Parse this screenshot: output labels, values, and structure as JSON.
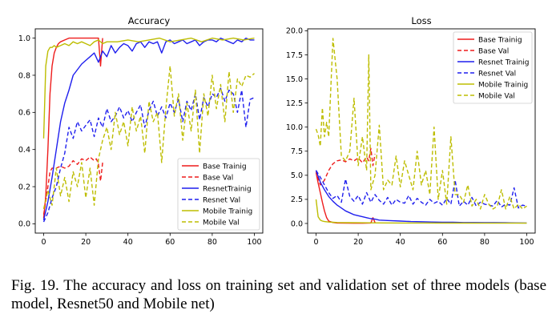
{
  "figure": {
    "caption": "Fig. 19.  The accuracy and loss on training set and validation set of three models (base model, Resnet50 and Mobile net)"
  },
  "colors": {
    "base": "#ee1c1c",
    "resnet": "#1f1fee",
    "mobile": "#bdbd00"
  },
  "chart_data": [
    {
      "type": "line",
      "title": "Accuracy",
      "xlabel": "",
      "ylabel": "",
      "xlim": [
        -4,
        104
      ],
      "ylim": [
        -0.05,
        1.05
      ],
      "xticks": [
        0,
        20,
        40,
        60,
        80,
        100
      ],
      "yticks": [
        0.0,
        0.2,
        0.4,
        0.6,
        0.8,
        1.0
      ],
      "ytick_labels": [
        "0.0",
        "0.2",
        "0.4",
        "0.6",
        "0.8",
        "1.0"
      ],
      "grid": false,
      "legend": "lower-right",
      "series": [
        {
          "name": "Base Trainig",
          "color": "#ee1c1c",
          "dash": false,
          "x": [
            0,
            1,
            2,
            3,
            4,
            5,
            6,
            7,
            8,
            10,
            12,
            14,
            16,
            18,
            20,
            22,
            24,
            25,
            26,
            27,
            28
          ],
          "y": [
            0.03,
            0.15,
            0.4,
            0.7,
            0.85,
            0.92,
            0.95,
            0.97,
            0.98,
            0.99,
            1.0,
            1.0,
            1.0,
            1.0,
            1.0,
            1.0,
            1.0,
            1.0,
            1.0,
            0.85,
            1.0
          ]
        },
        {
          "name": "Base Val",
          "color": "#ee1c1c",
          "dash": true,
          "x": [
            0,
            1,
            2,
            3,
            4,
            6,
            8,
            10,
            12,
            14,
            16,
            18,
            20,
            22,
            24,
            25,
            26,
            27,
            28
          ],
          "y": [
            0.05,
            0.12,
            0.2,
            0.28,
            0.3,
            0.3,
            0.31,
            0.3,
            0.31,
            0.34,
            0.32,
            0.35,
            0.34,
            0.36,
            0.34,
            0.35,
            0.32,
            0.23,
            0.33
          ]
        },
        {
          "name": "ResnetTrainig",
          "color": "#1f1fee",
          "dash": false,
          "x": [
            0,
            2,
            4,
            6,
            8,
            10,
            12,
            14,
            16,
            18,
            20,
            22,
            24,
            26,
            28,
            30,
            32,
            34,
            36,
            38,
            40,
            42,
            44,
            46,
            48,
            50,
            52,
            54,
            56,
            58,
            60,
            62,
            64,
            66,
            68,
            70,
            72,
            74,
            76,
            78,
            80,
            82,
            84,
            86,
            88,
            90,
            92,
            94,
            96,
            98,
            100
          ],
          "y": [
            0.02,
            0.12,
            0.25,
            0.4,
            0.55,
            0.65,
            0.72,
            0.8,
            0.83,
            0.86,
            0.88,
            0.9,
            0.92,
            0.87,
            0.93,
            0.9,
            0.96,
            0.92,
            0.95,
            0.97,
            0.96,
            0.93,
            0.97,
            0.98,
            0.95,
            0.98,
            0.97,
            0.98,
            0.92,
            0.98,
            0.99,
            0.97,
            0.98,
            0.99,
            0.97,
            0.98,
            0.99,
            0.96,
            0.98,
            0.99,
            0.99,
            0.98,
            1.0,
            0.99,
            0.98,
            0.97,
            0.99,
            0.98,
            1.0,
            0.99,
            0.99
          ]
        },
        {
          "name": "Resnet Val",
          "color": "#1f1fee",
          "dash": true,
          "x": [
            0,
            2,
            4,
            6,
            8,
            10,
            12,
            14,
            16,
            18,
            20,
            22,
            24,
            26,
            28,
            30,
            32,
            34,
            36,
            38,
            40,
            42,
            44,
            46,
            48,
            50,
            52,
            54,
            56,
            58,
            60,
            62,
            64,
            66,
            68,
            70,
            72,
            74,
            76,
            78,
            80,
            82,
            84,
            86,
            88,
            90,
            92,
            94,
            96,
            98,
            100
          ],
          "y": [
            0.01,
            0.06,
            0.14,
            0.2,
            0.3,
            0.38,
            0.52,
            0.46,
            0.55,
            0.5,
            0.53,
            0.56,
            0.47,
            0.57,
            0.52,
            0.62,
            0.55,
            0.58,
            0.63,
            0.57,
            0.61,
            0.55,
            0.6,
            0.64,
            0.52,
            0.61,
            0.66,
            0.58,
            0.63,
            0.57,
            0.65,
            0.6,
            0.67,
            0.55,
            0.66,
            0.61,
            0.7,
            0.56,
            0.68,
            0.63,
            0.7,
            0.68,
            0.73,
            0.66,
            0.72,
            0.7,
            0.6,
            0.72,
            0.52,
            0.67,
            0.68
          ]
        },
        {
          "name": "Mobile Trainig",
          "color": "#bdbd00",
          "dash": false,
          "x": [
            0,
            1,
            2,
            3,
            4,
            5,
            6,
            8,
            10,
            12,
            14,
            16,
            18,
            20,
            22,
            24,
            26,
            28,
            30,
            35,
            40,
            45,
            50,
            55,
            60,
            65,
            70,
            75,
            80,
            85,
            90,
            95,
            100
          ],
          "y": [
            0.46,
            0.85,
            0.93,
            0.95,
            0.95,
            0.96,
            0.95,
            0.96,
            0.97,
            0.96,
            0.98,
            0.97,
            0.98,
            0.97,
            0.96,
            0.98,
            0.99,
            0.97,
            0.98,
            0.98,
            0.99,
            0.98,
            0.99,
            1.0,
            0.98,
            0.99,
            1.0,
            0.98,
            1.0,
            0.99,
            1.0,
            0.99,
            1.0
          ]
        },
        {
          "name": "Mobile Val",
          "color": "#bdbd00",
          "dash": true,
          "x": [
            0,
            2,
            4,
            6,
            8,
            10,
            12,
            14,
            16,
            18,
            20,
            22,
            24,
            26,
            28,
            30,
            32,
            34,
            36,
            38,
            40,
            42,
            44,
            46,
            48,
            50,
            52,
            54,
            56,
            58,
            60,
            62,
            64,
            66,
            68,
            70,
            72,
            74,
            76,
            78,
            80,
            82,
            84,
            86,
            88,
            90,
            92,
            94,
            96,
            98,
            100
          ],
          "y": [
            0.08,
            0.18,
            0.1,
            0.3,
            0.15,
            0.25,
            0.12,
            0.28,
            0.2,
            0.33,
            0.14,
            0.3,
            0.1,
            0.35,
            0.45,
            0.52,
            0.4,
            0.6,
            0.48,
            0.55,
            0.42,
            0.63,
            0.5,
            0.58,
            0.38,
            0.66,
            0.55,
            0.6,
            0.33,
            0.62,
            0.85,
            0.58,
            0.7,
            0.45,
            0.65,
            0.5,
            0.72,
            0.38,
            0.7,
            0.58,
            0.8,
            0.62,
            0.75,
            0.55,
            0.82,
            0.6,
            0.78,
            0.74,
            0.8,
            0.79,
            0.81
          ]
        }
      ]
    },
    {
      "type": "line",
      "title": "Loss",
      "xlabel": "",
      "ylabel": "",
      "xlim": [
        -4,
        104
      ],
      "ylim": [
        -1.0,
        20.2
      ],
      "xticks": [
        0,
        20,
        40,
        60,
        80,
        100
      ],
      "yticks": [
        0.0,
        2.5,
        5.0,
        7.5,
        10.0,
        12.5,
        15.0,
        17.5,
        20.0
      ],
      "ytick_labels": [
        "0.0",
        "2.5",
        "5.0",
        "7.5",
        "10.0",
        "12.5",
        "15.0",
        "17.5",
        "20.0"
      ],
      "grid": false,
      "legend": "upper-right",
      "series": [
        {
          "name": "Base Trainig",
          "color": "#ee1c1c",
          "dash": false,
          "x": [
            0,
            1,
            2,
            3,
            4,
            5,
            6,
            8,
            10,
            14,
            18,
            22,
            26,
            27,
            28
          ],
          "y": [
            5.3,
            4.2,
            3.2,
            2.2,
            1.3,
            0.6,
            0.25,
            0.1,
            0.05,
            0.03,
            0.02,
            0.02,
            0.05,
            0.6,
            0.1
          ]
        },
        {
          "name": "Base Val",
          "color": "#ee1c1c",
          "dash": true,
          "x": [
            0,
            1,
            2,
            3,
            4,
            6,
            8,
            10,
            12,
            14,
            16,
            18,
            20,
            22,
            24,
            25,
            26,
            27,
            28
          ],
          "y": [
            5.5,
            4.6,
            4.0,
            4.2,
            4.5,
            5.5,
            6.2,
            6.5,
            6.6,
            6.4,
            6.7,
            6.5,
            6.8,
            6.3,
            6.9,
            6.5,
            7.8,
            6.0,
            7.2
          ]
        },
        {
          "name": "Resnet Trainig",
          "color": "#1f1fee",
          "dash": false,
          "x": [
            0,
            2,
            4,
            6,
            8,
            10,
            12,
            14,
            16,
            18,
            20,
            22,
            24,
            26,
            28,
            30,
            35,
            40,
            45,
            50,
            55,
            60,
            65,
            70,
            75,
            80,
            85,
            90,
            95,
            100
          ],
          "y": [
            5.5,
            4.3,
            3.5,
            2.8,
            2.3,
            1.9,
            1.6,
            1.3,
            1.1,
            0.9,
            0.8,
            0.7,
            0.6,
            0.5,
            0.45,
            0.35,
            0.3,
            0.25,
            0.2,
            0.18,
            0.15,
            0.12,
            0.12,
            0.1,
            0.1,
            0.08,
            0.08,
            0.07,
            0.06,
            0.05
          ]
        },
        {
          "name": "Resnet Val",
          "color": "#1f1fee",
          "dash": true,
          "x": [
            0,
            2,
            4,
            6,
            8,
            10,
            12,
            14,
            16,
            18,
            20,
            22,
            24,
            26,
            28,
            30,
            32,
            34,
            36,
            38,
            40,
            42,
            44,
            46,
            48,
            50,
            52,
            54,
            56,
            58,
            60,
            62,
            64,
            66,
            68,
            70,
            72,
            74,
            76,
            78,
            80,
            82,
            84,
            86,
            88,
            90,
            92,
            94,
            96,
            98,
            100
          ],
          "y": [
            5.5,
            4.8,
            4.0,
            3.2,
            2.6,
            2.9,
            2.2,
            4.6,
            2.8,
            2.3,
            2.9,
            2.0,
            3.2,
            2.2,
            3.0,
            2.4,
            2.0,
            2.7,
            1.9,
            2.5,
            2.2,
            2.1,
            2.9,
            2.0,
            2.6,
            2.2,
            1.9,
            2.5,
            2.1,
            2.3,
            1.9,
            2.6,
            2.0,
            4.5,
            1.8,
            2.3,
            1.9,
            2.7,
            1.8,
            2.2,
            2.0,
            1.9,
            1.8,
            2.4,
            1.7,
            2.0,
            1.9,
            3.7,
            1.6,
            1.9,
            1.8
          ]
        },
        {
          "name": "Mobile Trainig",
          "color": "#bdbd00",
          "dash": false,
          "x": [
            0,
            1,
            2,
            3,
            4,
            6,
            8,
            10,
            15,
            20,
            30,
            40,
            50,
            60,
            70,
            80,
            90,
            100
          ],
          "y": [
            2.5,
            0.7,
            0.35,
            0.25,
            0.2,
            0.15,
            0.12,
            0.1,
            0.08,
            0.07,
            0.06,
            0.05,
            0.05,
            0.04,
            0.04,
            0.03,
            0.03,
            0.03
          ]
        },
        {
          "name": "Mobile Val",
          "color": "#bdbd00",
          "dash": true,
          "x": [
            0,
            1,
            2,
            3,
            4,
            5,
            6,
            8,
            10,
            12,
            14,
            16,
            18,
            20,
            22,
            24,
            25,
            26,
            28,
            30,
            32,
            34,
            36,
            38,
            40,
            42,
            44,
            46,
            48,
            50,
            52,
            54,
            56,
            58,
            60,
            62,
            64,
            66,
            68,
            70,
            72,
            74,
            76,
            78,
            80,
            82,
            84,
            86,
            88,
            90,
            92,
            94,
            96,
            98,
            100
          ],
          "y": [
            9.8,
            9.2,
            8.0,
            12.0,
            9.0,
            10.5,
            9.0,
            19.2,
            15.0,
            7.0,
            6.5,
            7.5,
            13.0,
            6.0,
            9.0,
            5.5,
            17.5,
            3.5,
            5.0,
            10.2,
            3.5,
            4.5,
            4.0,
            7.0,
            3.8,
            6.5,
            5.0,
            3.5,
            7.5,
            4.0,
            5.5,
            3.0,
            10.0,
            2.5,
            5.5,
            2.0,
            9.0,
            3.0,
            3.0,
            2.2,
            4.0,
            1.8,
            2.5,
            1.5,
            3.0,
            2.0,
            1.5,
            1.8,
            3.5,
            1.5,
            2.8,
            1.5,
            2.0,
            1.5,
            1.8
          ]
        }
      ]
    }
  ]
}
